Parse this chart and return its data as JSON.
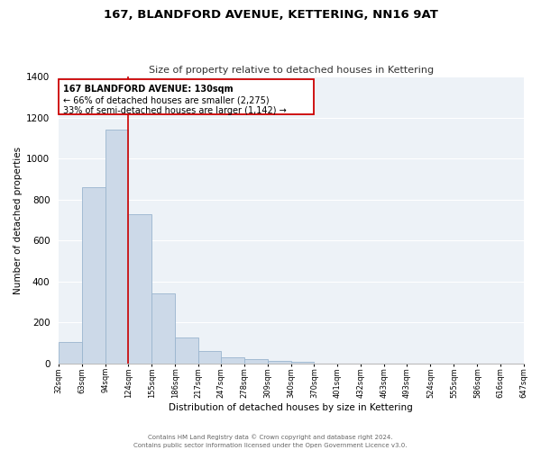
{
  "title": "167, BLANDFORD AVENUE, KETTERING, NN16 9AT",
  "subtitle": "Size of property relative to detached houses in Kettering",
  "xlabel": "Distribution of detached houses by size in Kettering",
  "ylabel": "Number of detached properties",
  "bar_color": "#ccd9e8",
  "bar_edge_color": "#9ab5ce",
  "background_color": "#edf2f7",
  "grid_color": "white",
  "annotation_line_color": "#cc0000",
  "annotation_box_color": "#cc0000",
  "property_line_x": 124,
  "bins": [
    32,
    63,
    94,
    124,
    155,
    186,
    217,
    247,
    278,
    309,
    340,
    370,
    401,
    432,
    463,
    493,
    524,
    555,
    586,
    616,
    647
  ],
  "counts": [
    105,
    860,
    1140,
    730,
    343,
    128,
    60,
    32,
    22,
    14,
    8,
    0,
    0,
    0,
    0,
    0,
    0,
    0,
    0,
    0
  ],
  "ylim": [
    0,
    1400
  ],
  "yticks": [
    0,
    200,
    400,
    600,
    800,
    1000,
    1200,
    1400
  ],
  "annotation_title": "167 BLANDFORD AVENUE: 130sqm",
  "annotation_line1": "← 66% of detached houses are smaller (2,275)",
  "annotation_line2": "33% of semi-detached houses are larger (1,142) →",
  "footer_line1": "Contains HM Land Registry data © Crown copyright and database right 2024.",
  "footer_line2": "Contains public sector information licensed under the Open Government Licence v3.0."
}
